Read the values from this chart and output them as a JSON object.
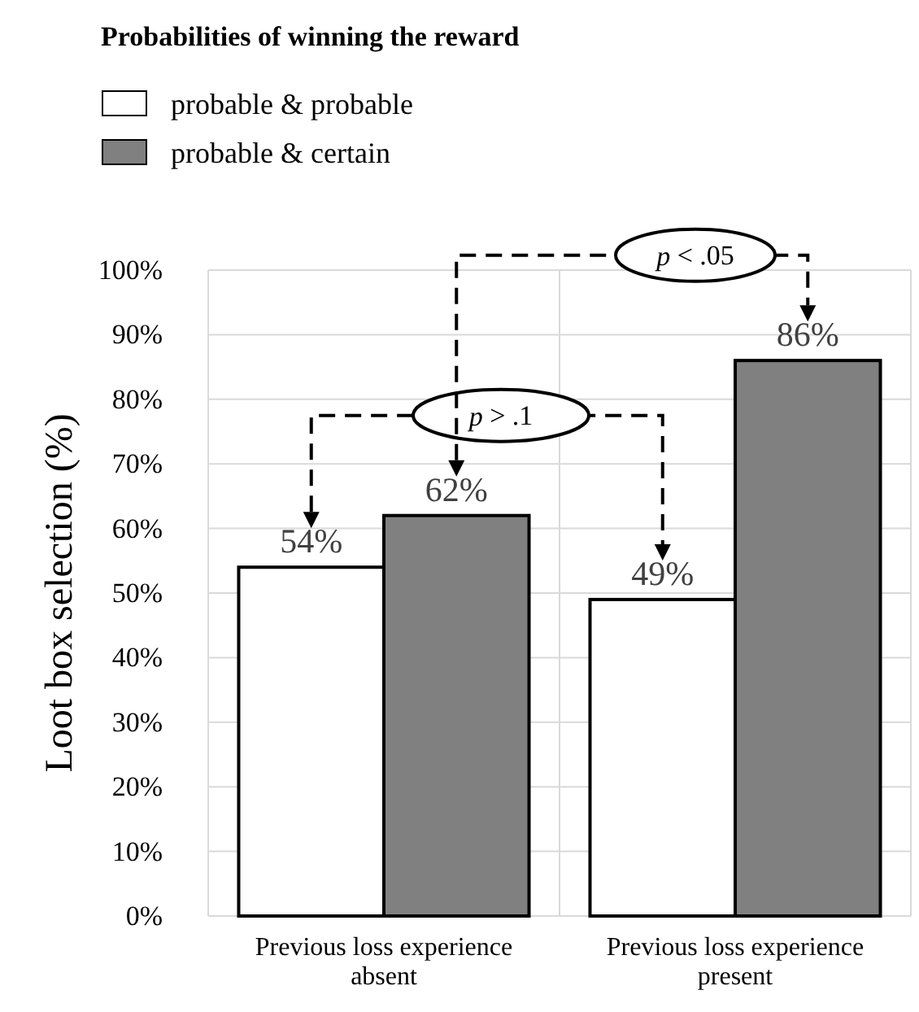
{
  "chart_data": {
    "type": "bar",
    "legend_title": "Probabilities of winning the reward",
    "ylabel": "Loot box selection (%)",
    "categories": [
      "Previous loss experience absent",
      "Previous loss experience present"
    ],
    "series": [
      {
        "name": "probable & probable",
        "color": "#ffffff",
        "values": [
          54,
          49
        ],
        "value_labels": [
          "54%",
          "49%"
        ]
      },
      {
        "name": "probable & certain",
        "color": "#808080",
        "values": [
          62,
          86
        ],
        "value_labels": [
          "62%",
          "86%"
        ]
      }
    ],
    "ylim": [
      0,
      100
    ],
    "yticks": [
      {
        "value": 0,
        "label": "0%"
      },
      {
        "value": 10,
        "label": "10%"
      },
      {
        "value": 20,
        "label": "20%"
      },
      {
        "value": 30,
        "label": "30%"
      },
      {
        "value": 40,
        "label": "40%"
      },
      {
        "value": 50,
        "label": "50%"
      },
      {
        "value": 60,
        "label": "60%"
      },
      {
        "value": 70,
        "label": "70%"
      },
      {
        "value": 80,
        "label": "80%"
      },
      {
        "value": 90,
        "label": "90%"
      },
      {
        "value": 100,
        "label": "100%"
      }
    ],
    "grid": true,
    "legend": "top left",
    "annotations": [
      "p > .1",
      "p < .05"
    ]
  }
}
